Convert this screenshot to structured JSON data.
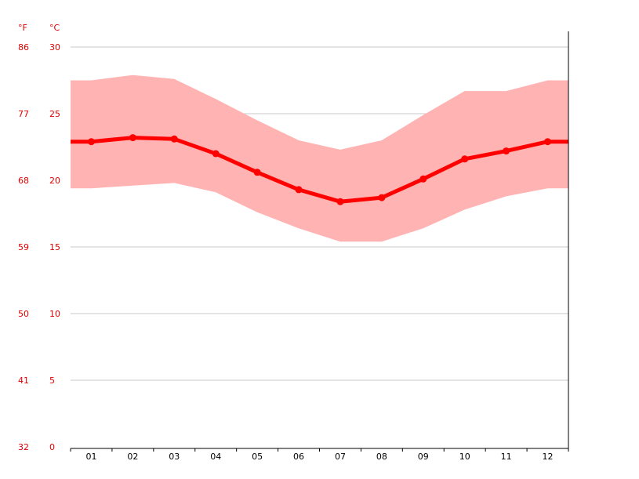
{
  "chart_data": {
    "type": "line",
    "title": "",
    "units": {
      "left": "°F",
      "right": "°C"
    },
    "categories": [
      "01",
      "02",
      "03",
      "04",
      "05",
      "06",
      "07",
      "08",
      "09",
      "10",
      "11",
      "12"
    ],
    "y_ticks_c": [
      0,
      5,
      10,
      15,
      20,
      25,
      30
    ],
    "y_ticks_f": [
      32,
      41,
      50,
      59,
      68,
      77,
      86
    ],
    "ylim_c": [
      0,
      30
    ],
    "grid": true,
    "series": [
      {
        "values": [
          22.9,
          23.2,
          23.1,
          22.0,
          20.6,
          19.3,
          18.4,
          18.7,
          20.1,
          21.6,
          22.2,
          22.9
        ]
      }
    ],
    "band": {
      "max": [
        27.5,
        27.9,
        27.6,
        26.1,
        24.5,
        23.0,
        22.3,
        23.0,
        24.9,
        26.7,
        26.7,
        27.5
      ],
      "min": [
        19.4,
        19.6,
        19.8,
        19.1,
        17.6,
        16.4,
        15.4,
        15.4,
        16.4,
        17.8,
        18.8,
        19.4
      ]
    },
    "colors": {
      "line": "#ff0000",
      "band": "#ffb3b3",
      "grid": "#c8c8c8",
      "axis_text": "#e00000"
    }
  }
}
